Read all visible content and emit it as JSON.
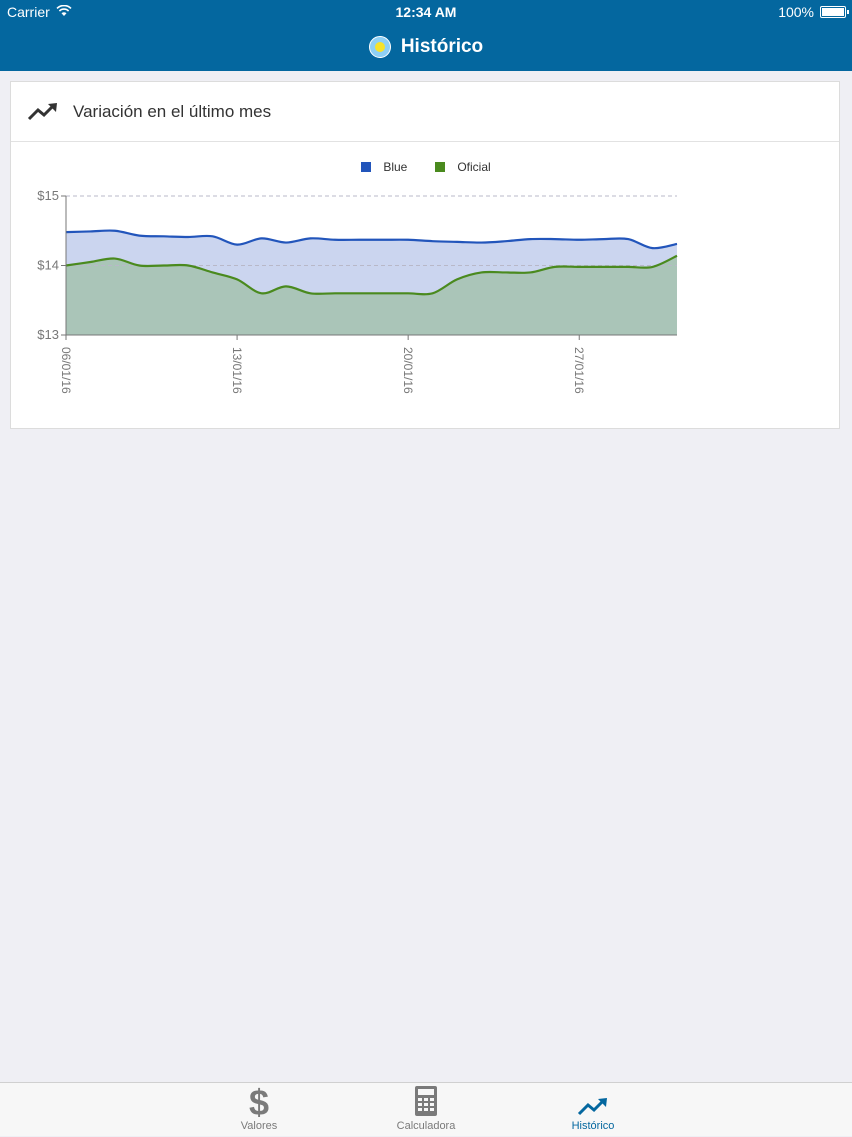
{
  "status_bar": {
    "carrier": "Carrier",
    "time": "12:34 AM",
    "battery": "100%"
  },
  "nav": {
    "title": "Histórico"
  },
  "card": {
    "title": "Variación en el último mes"
  },
  "legend": [
    {
      "name": "Blue",
      "color": "#2255bb"
    },
    {
      "name": "Oficial",
      "color": "#4a8a1e"
    }
  ],
  "chart_data": {
    "type": "area",
    "y_ticks": [
      "$15",
      "$14",
      "$13"
    ],
    "ylim": [
      13,
      15
    ],
    "x_ticks": [
      "06/01/16",
      "13/01/16",
      "20/01/16",
      "27/01/16"
    ],
    "grid": "dashed horizontal",
    "legend_position": "top",
    "x": [
      "06/01/16",
      "07/01/16",
      "08/01/16",
      "09/01/16",
      "10/01/16",
      "11/01/16",
      "12/01/16",
      "13/01/16",
      "14/01/16",
      "15/01/16",
      "16/01/16",
      "17/01/16",
      "18/01/16",
      "19/01/16",
      "20/01/16",
      "21/01/16",
      "22/01/16",
      "23/01/16",
      "24/01/16",
      "25/01/16",
      "26/01/16",
      "27/01/16",
      "28/01/16",
      "29/01/16",
      "30/01/16",
      "31/01/16"
    ],
    "series": [
      {
        "name": "Blue",
        "color": "#2255bb",
        "fill": "#c8d3ee",
        "values": [
          14.48,
          14.49,
          14.5,
          14.43,
          14.42,
          14.41,
          14.42,
          14.3,
          14.39,
          14.33,
          14.39,
          14.37,
          14.37,
          14.37,
          14.37,
          14.35,
          14.34,
          14.33,
          14.35,
          14.38,
          14.38,
          14.37,
          14.38,
          14.38,
          14.25,
          14.31
        ]
      },
      {
        "name": "Oficial",
        "color": "#4a8a1e",
        "fill": "#a8c4b4",
        "values": [
          14.0,
          14.05,
          14.1,
          14.0,
          14.0,
          14.0,
          13.9,
          13.8,
          13.6,
          13.7,
          13.6,
          13.6,
          13.6,
          13.6,
          13.6,
          13.6,
          13.8,
          13.9,
          13.9,
          13.9,
          13.98,
          13.98,
          13.98,
          13.98,
          13.98,
          14.14
        ]
      }
    ]
  },
  "tabbar": {
    "tabs": [
      {
        "label": "Valores",
        "icon": "dollar-icon",
        "active": false
      },
      {
        "label": "Calculadora",
        "icon": "calculator-icon",
        "active": false
      },
      {
        "label": "Histórico",
        "icon": "trend-icon",
        "active": true
      }
    ]
  }
}
